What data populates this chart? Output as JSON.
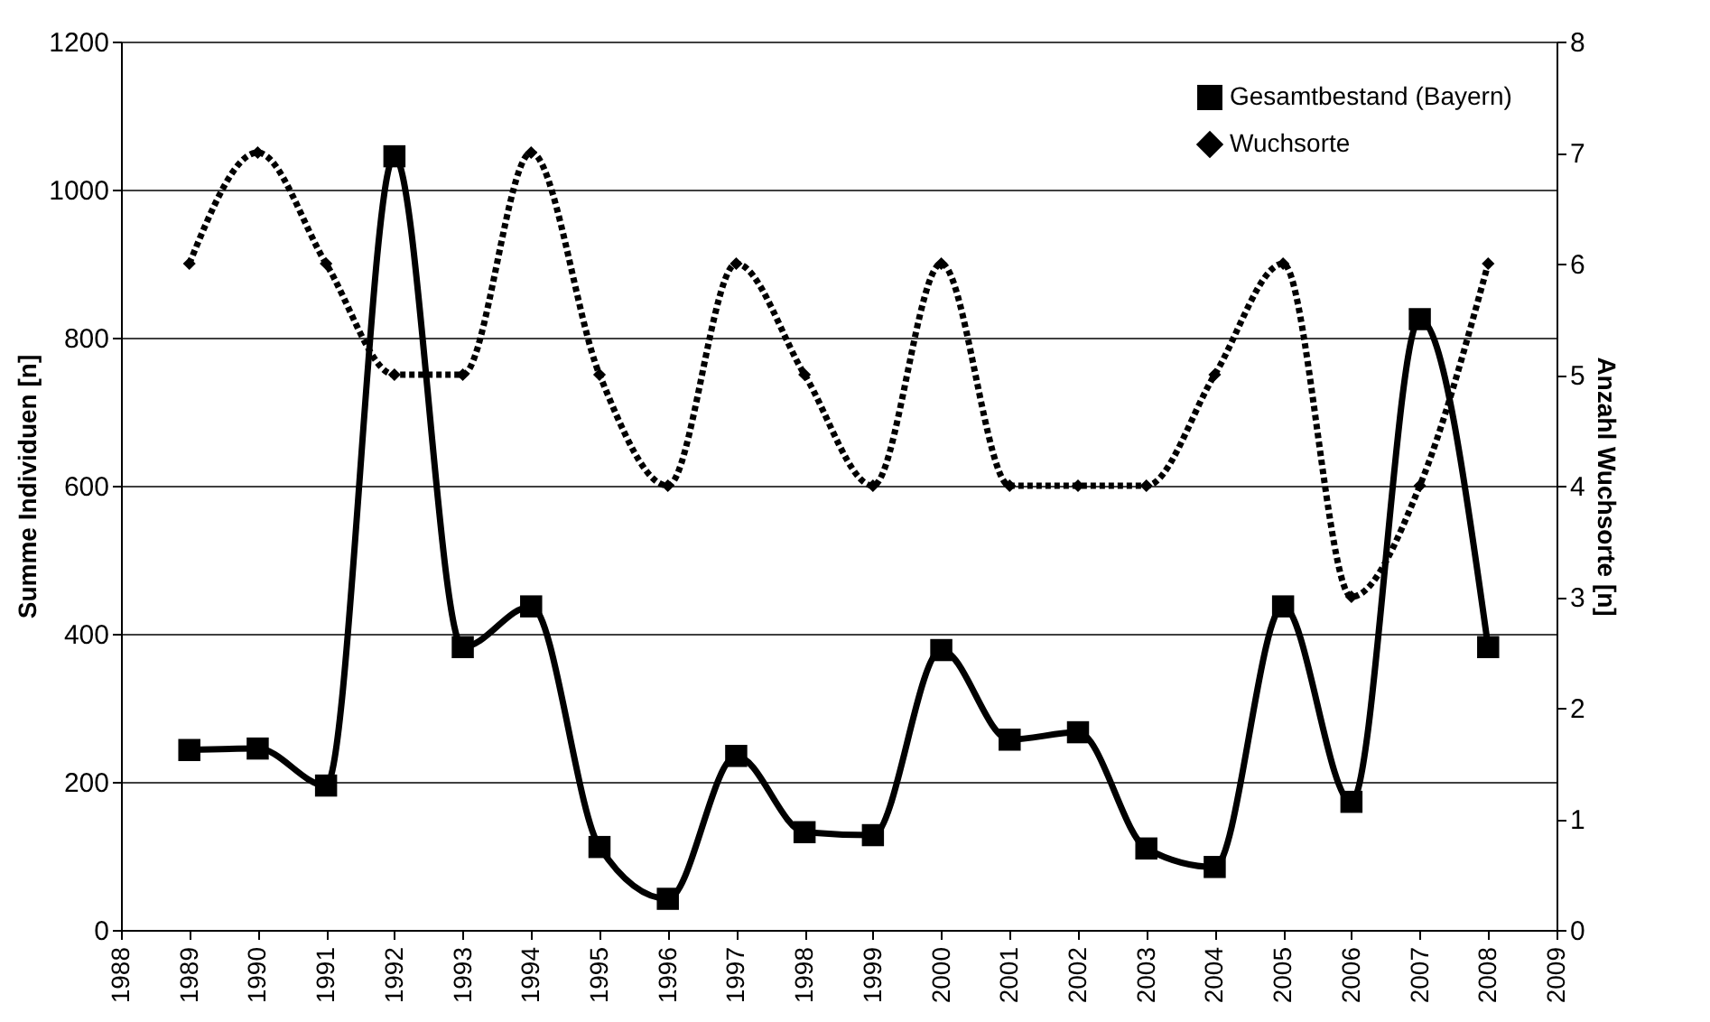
{
  "chart_data": {
    "type": "line",
    "x": [
      1989,
      1990,
      1991,
      1992,
      1993,
      1994,
      1995,
      1996,
      1997,
      1998,
      1999,
      2000,
      2001,
      2002,
      2003,
      2004,
      2005,
      2006,
      2007,
      2008
    ],
    "series": [
      {
        "name": "Gesamtbestand (Bayern)",
        "color": "#000000",
        "marker": "square",
        "line_style": "solid",
        "values": [
          243,
          245,
          195,
          1045,
          382,
          437,
          112,
          42,
          235,
          132,
          128,
          378,
          257,
          267,
          110,
          85,
          437,
          173,
          825,
          382
        ]
      },
      {
        "name": "Wuchsorte",
        "color": "#000000",
        "marker": "diamond",
        "line_style": "dotted",
        "axis": "y2",
        "values": [
          6,
          7,
          6,
          5,
          5,
          7,
          5,
          4,
          6,
          5,
          4,
          6,
          4,
          4,
          4,
          5,
          6,
          3,
          4,
          6
        ]
      }
    ],
    "ylabel": "Summe Individuen [n]",
    "y2label": "Anzahl Wuchsorte [n]",
    "xlim": [
      1988,
      2009
    ],
    "xticks": [
      1988,
      1989,
      1990,
      1991,
      1992,
      1993,
      1994,
      1995,
      1996,
      1997,
      1998,
      1999,
      2000,
      2001,
      2002,
      2003,
      2004,
      2005,
      2006,
      2007,
      2008,
      2009
    ],
    "ylim": [
      0,
      1200
    ],
    "yticks": [
      0,
      200,
      400,
      600,
      800,
      1000,
      1200
    ],
    "y2lim": [
      0,
      8
    ],
    "y2ticks": [
      0,
      1,
      2,
      3,
      4,
      5,
      6,
      7,
      8
    ],
    "grid": "y",
    "legend": "top right"
  }
}
